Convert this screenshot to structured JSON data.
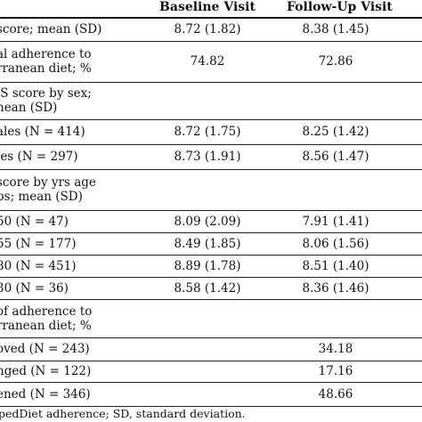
{
  "table": {
    "headers": {
      "baseline": "Baseline Visit",
      "followup": "Follow-Up Visit"
    },
    "rows": [
      {
        "label": [
          "score; mean (SD)"
        ],
        "baseline": "8.72 (1.82)",
        "followup": "8.38 (1.45)"
      },
      {
        "label": [
          "al adherence to",
          "rranean diet; %"
        ],
        "baseline": "74.82",
        "followup": "72.86"
      },
      {
        "label": [
          ".S score by sex;",
          "nean (SD)"
        ],
        "baseline": "",
        "followup": ""
      },
      {
        "label": [
          "ales (N = 414)"
        ],
        "baseline": "8.72 (1.75)",
        "followup": "8.25 (1.42)"
      },
      {
        "label": [
          "les (N = 297)"
        ],
        "baseline": "8.73 (1.91)",
        "followup": "8.56 (1.47)"
      },
      {
        "label": [
          "score by yrs age",
          "ps; mean (SD)"
        ],
        "baseline": "",
        "followup": ""
      },
      {
        "label": [
          "50 (N = 47)"
        ],
        "baseline": "8.09 (2.09)",
        "followup": "7.91 (1.41)"
      },
      {
        "label": [
          "55 (N = 177)"
        ],
        "baseline": "8.49 (1.85)",
        "followup": "8.06 (1.56)"
      },
      {
        "label": [
          "80 (N = 451)"
        ],
        "baseline": "8.89 (1.78)",
        "followup": "8.51 (1.40)"
      },
      {
        "label": [
          "30 (N = 36)"
        ],
        "baseline": "8.58 (1.42)",
        "followup": "8.36 (1.46)"
      },
      {
        "label": [
          "of adherence to",
          "rranean diet; %"
        ],
        "baseline": "",
        "followup": ""
      },
      {
        "label": [
          "oved (N = 243)"
        ],
        "baseline": "",
        "followup": "34.18"
      },
      {
        "label": [
          "nged (N = 122)"
        ],
        "baseline": "",
        "followup": "17.16"
      },
      {
        "label": [
          "ened (N = 346)"
        ],
        "baseline": "",
        "followup": "48.66"
      }
    ]
  },
  "footnote": "pedDiet adherence; SD, standard deviation."
}
